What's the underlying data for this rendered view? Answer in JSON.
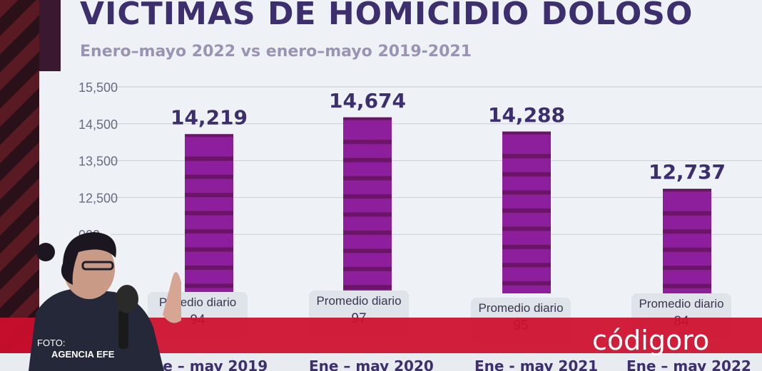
{
  "title": "VÍCTIMAS  DE HOMICIDIO DOLOSO",
  "subtitle": "Enero–mayo 2022 vs enero–mayo 2019-2021",
  "chart_data": {
    "type": "bar",
    "title": "VÍCTIMAS  DE HOMICIDIO DOLOSO",
    "subtitle": "Enero–mayo 2022 vs enero–mayo 2019-2021",
    "categories": [
      "Ene – may 2019",
      "Ene – may 2020",
      "Ene - may 2021",
      "Ene – may 2022"
    ],
    "category_labels_visible": [
      "ne – may 2019",
      "Ene – may 2020",
      "Ene - may 2021",
      "Ene – may 2022"
    ],
    "values": [
      14219,
      14674,
      14288,
      12737
    ],
    "value_labels": [
      "14,219",
      "14,674",
      "14,288",
      "12,737"
    ],
    "yticks": [
      "15,500",
      "14,500",
      "13,500",
      "12,500",
      "11,500"
    ],
    "yticks_visible": [
      "15,500",
      "14,500",
      "13,500",
      "12,500",
      "000"
    ],
    "ylim": [
      10000,
      15500
    ],
    "grid": true,
    "bar_color": "#8e1f9c",
    "bar_band_color": "#6a1565",
    "promedio_label": "Promedio diario",
    "promedio_visible_labels": [
      "P     medio diario",
      "Promedio diario",
      "Promedio diario",
      "Promedio diario"
    ],
    "promedio_values": [
      "94",
      "97",
      "95",
      "84"
    ]
  },
  "overlay": {
    "foto_label": "FOTO:",
    "agency": "AGENCIA EFE",
    "brand": "códigoro",
    "band_color": "#ce0e2c"
  }
}
